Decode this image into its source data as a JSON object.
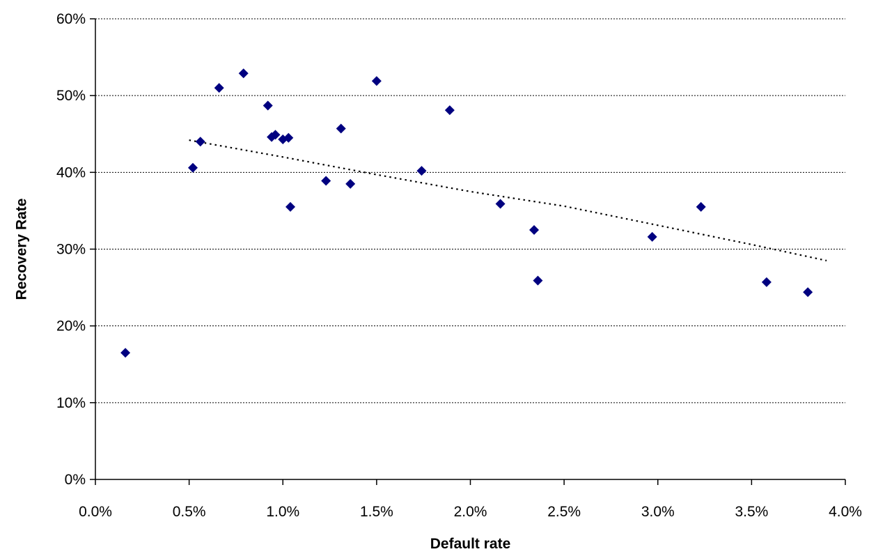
{
  "chart_data": {
    "type": "scatter",
    "title": "",
    "xlabel": "Default rate",
    "ylabel": "Recovery Rate",
    "xlim": [
      0.0,
      0.04
    ],
    "ylim": [
      0.0,
      0.6
    ],
    "x_ticks": [
      {
        "value": 0.0,
        "label": "0.0%"
      },
      {
        "value": 0.005,
        "label": "0.5%"
      },
      {
        "value": 0.01,
        "label": "1.0%"
      },
      {
        "value": 0.015,
        "label": "1.5%"
      },
      {
        "value": 0.02,
        "label": "2.0%"
      },
      {
        "value": 0.025,
        "label": "2.5%"
      },
      {
        "value": 0.03,
        "label": "3.0%"
      },
      {
        "value": 0.035,
        "label": "3.5%"
      },
      {
        "value": 0.04,
        "label": "4.0%"
      }
    ],
    "y_ticks": [
      {
        "value": 0.0,
        "label": "0%"
      },
      {
        "value": 0.1,
        "label": "10%"
      },
      {
        "value": 0.2,
        "label": "20%"
      },
      {
        "value": 0.3,
        "label": "30%"
      },
      {
        "value": 0.4,
        "label": "40%"
      },
      {
        "value": 0.5,
        "label": "50%"
      },
      {
        "value": 0.6,
        "label": "60%"
      }
    ],
    "horizontal_gridlines": true,
    "legend": "none",
    "series": [
      {
        "marker": "diamond",
        "color": "#000080",
        "points": [
          {
            "x": 0.0016,
            "y": 0.165
          },
          {
            "x": 0.0052,
            "y": 0.406
          },
          {
            "x": 0.0056,
            "y": 0.44
          },
          {
            "x": 0.0066,
            "y": 0.51
          },
          {
            "x": 0.0079,
            "y": 0.529
          },
          {
            "x": 0.0092,
            "y": 0.487
          },
          {
            "x": 0.0094,
            "y": 0.446
          },
          {
            "x": 0.0096,
            "y": 0.449
          },
          {
            "x": 0.01,
            "y": 0.443
          },
          {
            "x": 0.0103,
            "y": 0.445
          },
          {
            "x": 0.0104,
            "y": 0.355
          },
          {
            "x": 0.0123,
            "y": 0.389
          },
          {
            "x": 0.0131,
            "y": 0.457
          },
          {
            "x": 0.0136,
            "y": 0.385
          },
          {
            "x": 0.015,
            "y": 0.519
          },
          {
            "x": 0.0174,
            "y": 0.402
          },
          {
            "x": 0.0189,
            "y": 0.481
          },
          {
            "x": 0.0216,
            "y": 0.359
          },
          {
            "x": 0.0234,
            "y": 0.325
          },
          {
            "x": 0.0236,
            "y": 0.259
          },
          {
            "x": 0.0297,
            "y": 0.316
          },
          {
            "x": 0.0323,
            "y": 0.355
          },
          {
            "x": 0.0358,
            "y": 0.257
          },
          {
            "x": 0.038,
            "y": 0.244
          }
        ]
      }
    ],
    "trendline": {
      "style": "dotted",
      "color": "#000000",
      "points": [
        {
          "x": 0.005,
          "y": 0.442
        },
        {
          "x": 0.01,
          "y": 0.42
        },
        {
          "x": 0.015,
          "y": 0.397
        },
        {
          "x": 0.02,
          "y": 0.375
        },
        {
          "x": 0.025,
          "y": 0.356
        },
        {
          "x": 0.03,
          "y": 0.331
        },
        {
          "x": 0.035,
          "y": 0.306
        },
        {
          "x": 0.039,
          "y": 0.285
        }
      ]
    }
  }
}
